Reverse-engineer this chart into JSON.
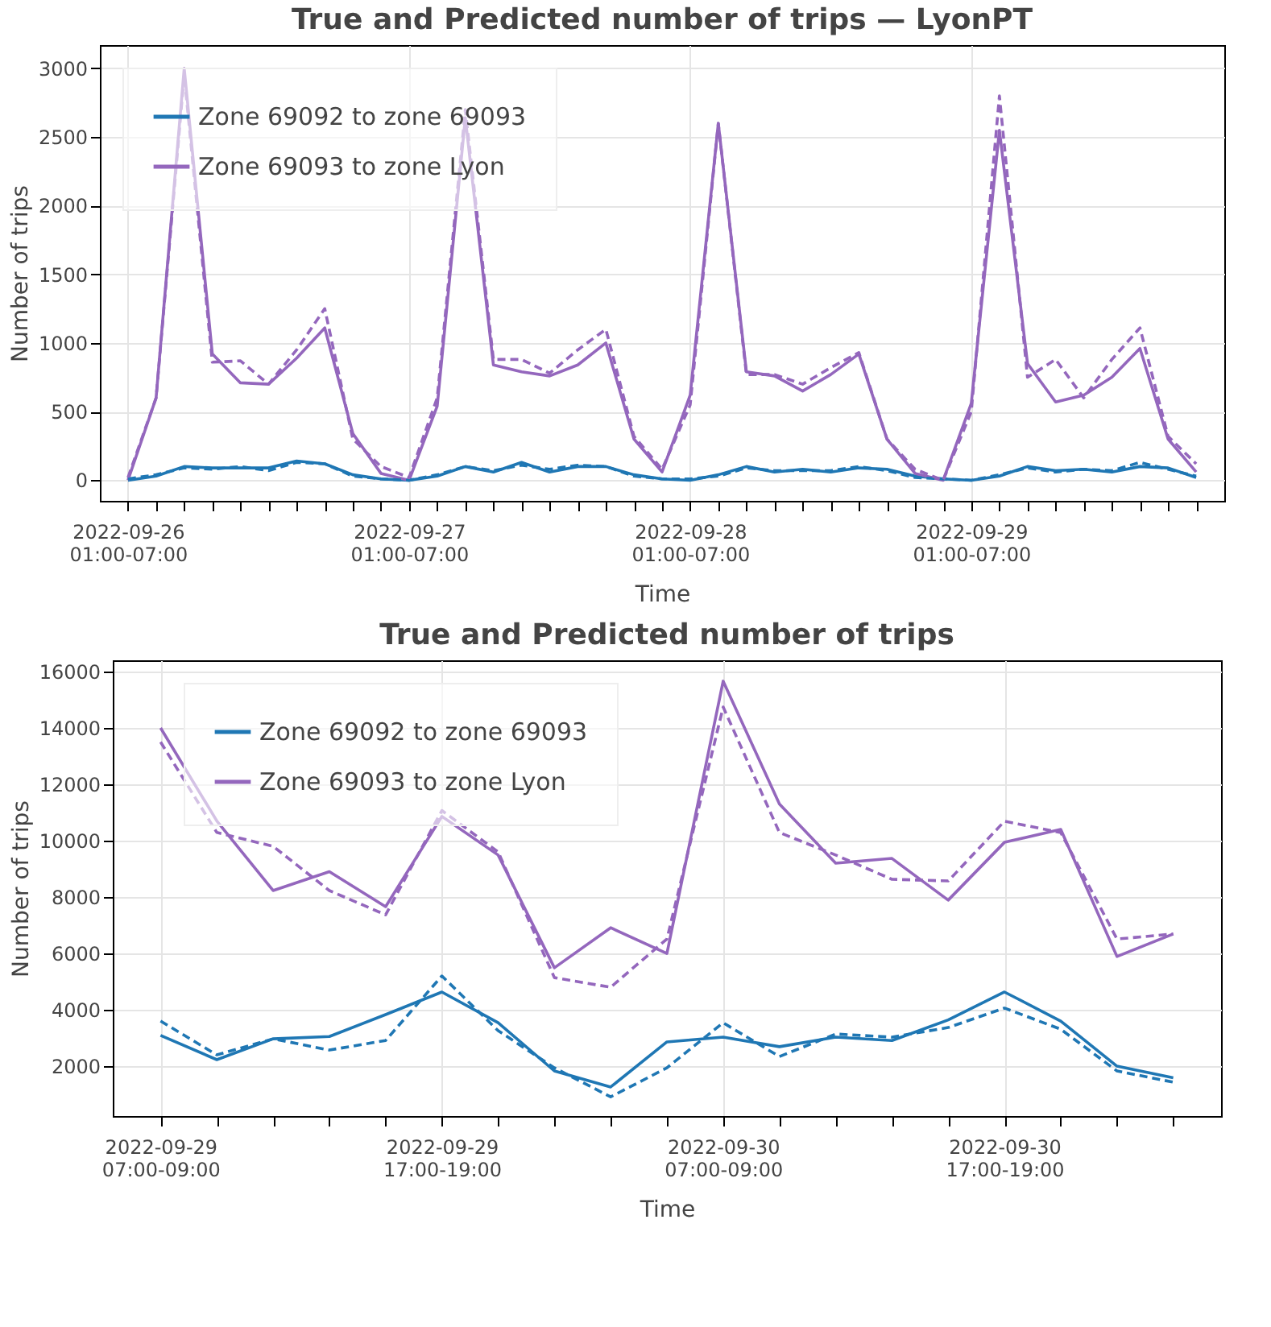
{
  "chart_data": [
    {
      "type": "line",
      "title": "True and Predicted number of trips — LyonPT",
      "xlabel": "Time",
      "ylabel": "Number of trips",
      "categories": [
        "2022-09-26 01:00-07:00",
        null,
        null,
        null,
        null,
        null,
        null,
        null,
        null,
        null,
        "2022-09-27 01:00-07:00",
        null,
        null,
        null,
        null,
        null,
        null,
        null,
        null,
        null,
        "2022-09-28 01:00-07:00",
        null,
        null,
        null,
        null,
        null,
        null,
        null,
        null,
        null,
        "2022-09-29 01:00-07:00",
        null,
        null,
        null,
        null,
        null,
        null,
        null,
        null
      ],
      "series": [
        {
          "name": "Zone 69092 to zone 69093",
          "color": "#1f77b4",
          "line_style": "solid",
          "values": [
            0,
            30,
            100,
            90,
            90,
            90,
            140,
            120,
            40,
            10,
            0,
            30,
            100,
            60,
            130,
            60,
            100,
            100,
            40,
            10,
            0,
            40,
            100,
            60,
            80,
            60,
            90,
            80,
            30,
            10,
            0,
            30,
            100,
            70,
            80,
            60,
            100,
            90,
            20
          ]
        },
        {
          "name": "Zone 69093 to zone Lyon",
          "color": "#9467bd",
          "line_style": "solid",
          "values": [
            0,
            600,
            3000,
            920,
            710,
            700,
            890,
            1110,
            340,
            50,
            0,
            540,
            2640,
            840,
            790,
            760,
            840,
            1000,
            300,
            60,
            620,
            2600,
            790,
            760,
            650,
            770,
            920,
            300,
            50,
            0,
            560,
            2550,
            850,
            570,
            620,
            750,
            960,
            300,
            60
          ]
        },
        {
          "color": "#1f77b4",
          "line_style": "dashed",
          "values": [
            10,
            40,
            90,
            80,
            100,
            70,
            130,
            120,
            30,
            10,
            0,
            40,
            100,
            70,
            110,
            80,
            110,
            100,
            30,
            10,
            10,
            30,
            90,
            70,
            70,
            70,
            100,
            70,
            20,
            10,
            0,
            40,
            90,
            60,
            80,
            70,
            130,
            80,
            30
          ]
        },
        {
          "color": "#9467bd",
          "line_style": "dashed",
          "values": [
            20,
            600,
            2950,
            860,
            870,
            700,
            950,
            1250,
            300,
            100,
            20,
            600,
            2700,
            880,
            880,
            780,
            950,
            1100,
            320,
            80,
            550,
            2600,
            770,
            770,
            700,
            820,
            930,
            300,
            80,
            0,
            500,
            2800,
            750,
            880,
            600,
            880,
            1110,
            320,
            120
          ]
        }
      ],
      "ylim": [
        -150,
        3170
      ],
      "yticks": [
        0,
        500,
        1000,
        1500,
        2000,
        2500,
        3000
      ],
      "grid": true,
      "legend": "top left"
    },
    {
      "type": "line",
      "title": "True and Predicted number of trips",
      "xlabel": "Time",
      "ylabel": "Number of trips",
      "categories": [
        "2022-09-29 07:00-09:00",
        null,
        null,
        null,
        null,
        "2022-09-29 17:00-19:00",
        null,
        null,
        null,
        null,
        "2022-09-30 07:00-09:00",
        null,
        null,
        null,
        null,
        "2022-09-30 17:00-19:00",
        null,
        null,
        null
      ],
      "series": [
        {
          "name": "Zone 69092 to zone 69093",
          "color": "#1f77b4",
          "line_style": "solid",
          "values": [
            3090,
            2230,
            2970,
            3050,
            3830,
            4630,
            3540,
            1830,
            1260,
            2860,
            3030,
            2690,
            3030,
            2910,
            3640,
            4630,
            3600,
            2000,
            1590
          ]
        },
        {
          "name": "Zone 69093 to zone Lyon",
          "color": "#9467bd",
          "line_style": "solid",
          "values": [
            14000,
            10700,
            8230,
            8900,
            7660,
            10860,
            9490,
            5490,
            6910,
            6000,
            15660,
            11300,
            9200,
            9370,
            7890,
            9940,
            10400,
            5890,
            6690
          ]
        },
        {
          "color": "#1f77b4",
          "line_style": "dashed",
          "values": [
            3600,
            2400,
            2970,
            2570,
            2910,
            5200,
            3260,
            1940,
            910,
            1940,
            3540,
            2340,
            3140,
            3030,
            3370,
            4060,
            3310,
            1830,
            1430
          ]
        },
        {
          "color": "#9467bd",
          "line_style": "dashed",
          "values": [
            13500,
            10290,
            9800,
            8230,
            7370,
            11070,
            9600,
            5140,
            4800,
            6510,
            14740,
            10290,
            9490,
            8630,
            8570,
            10690,
            10290,
            6510,
            6690
          ]
        }
      ],
      "ylim": [
        230,
        16400
      ],
      "yticks": [
        2000,
        4000,
        6000,
        8000,
        10000,
        12000,
        14000,
        16000
      ],
      "grid": true,
      "legend": "top left"
    }
  ]
}
